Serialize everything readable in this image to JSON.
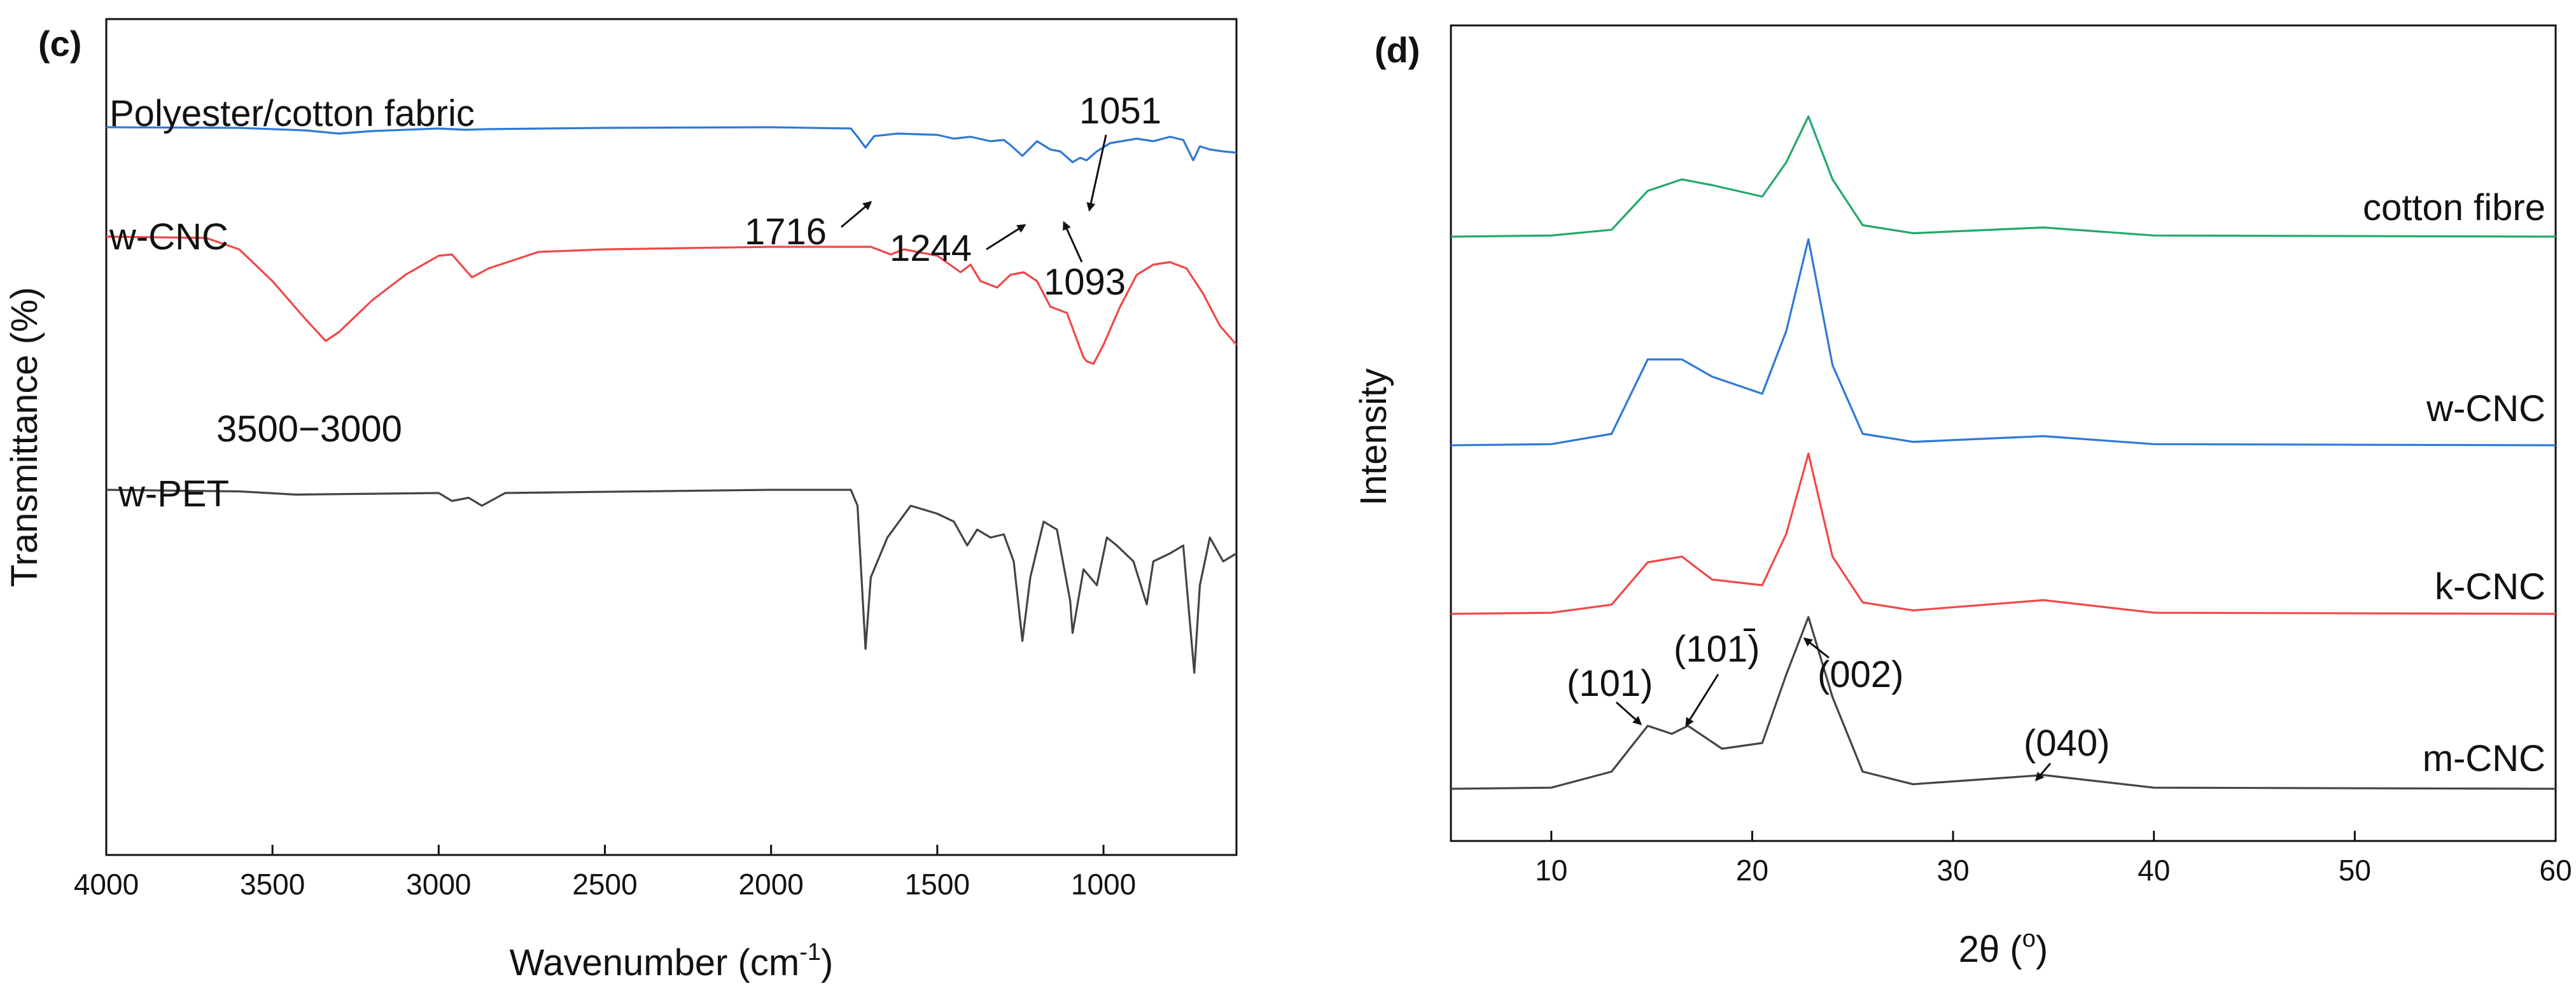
{
  "chart_data": [
    {
      "type": "line",
      "panel_label": "(c)",
      "xlabel": "Wavenumber (cm",
      "xlabel_sup": "-1",
      "xlabel_close": ")",
      "ylabel": "Transmittance (%)",
      "xlim": [
        4000,
        600
      ],
      "x_reversed": true,
      "xticks": [
        4000,
        3500,
        3000,
        2500,
        2000,
        1500,
        1000
      ],
      "series": [
        {
          "name": "Polyester/cotton fabric",
          "color": "#2f79d6",
          "points": [
            [
              4000,
              0.0
            ],
            [
              3600,
              0.01
            ],
            [
              3400,
              0.05
            ],
            [
              3300,
              0.1
            ],
            [
              3200,
              0.06
            ],
            [
              3000,
              0.02
            ],
            [
              2920,
              0.04
            ],
            [
              2850,
              0.03
            ],
            [
              2500,
              0.01
            ],
            [
              2000,
              0.0
            ],
            [
              1760,
              0.02
            ],
            [
              1740,
              0.15
            ],
            [
              1716,
              0.32
            ],
            [
              1690,
              0.14
            ],
            [
              1620,
              0.1
            ],
            [
              1500,
              0.12
            ],
            [
              1450,
              0.18
            ],
            [
              1400,
              0.15
            ],
            [
              1340,
              0.22
            ],
            [
              1300,
              0.2
            ],
            [
              1280,
              0.28
            ],
            [
              1244,
              0.45
            ],
            [
              1200,
              0.22
            ],
            [
              1160,
              0.35
            ],
            [
              1130,
              0.38
            ],
            [
              1093,
              0.55
            ],
            [
              1070,
              0.48
            ],
            [
              1051,
              0.52
            ],
            [
              1020,
              0.38
            ],
            [
              980,
              0.25
            ],
            [
              900,
              0.18
            ],
            [
              850,
              0.22
            ],
            [
              800,
              0.15
            ],
            [
              760,
              0.2
            ],
            [
              730,
              0.52
            ],
            [
              710,
              0.3
            ],
            [
              680,
              0.35
            ],
            [
              640,
              0.38
            ],
            [
              600,
              0.4
            ]
          ]
        },
        {
          "name": "w-CNC",
          "color": "#f04848",
          "points": [
            [
              4000,
              0.0
            ],
            [
              3700,
              0.01
            ],
            [
              3600,
              0.1
            ],
            [
              3500,
              0.35
            ],
            [
              3400,
              0.65
            ],
            [
              3340,
              0.82
            ],
            [
              3300,
              0.75
            ],
            [
              3200,
              0.5
            ],
            [
              3100,
              0.3
            ],
            [
              3000,
              0.15
            ],
            [
              2960,
              0.14
            ],
            [
              2900,
              0.32
            ],
            [
              2850,
              0.25
            ],
            [
              2700,
              0.12
            ],
            [
              2500,
              0.1
            ],
            [
              2000,
              0.08
            ],
            [
              1700,
              0.08
            ],
            [
              1640,
              0.14
            ],
            [
              1600,
              0.1
            ],
            [
              1500,
              0.15
            ],
            [
              1430,
              0.28
            ],
            [
              1400,
              0.22
            ],
            [
              1370,
              0.35
            ],
            [
              1320,
              0.4
            ],
            [
              1280,
              0.3
            ],
            [
              1240,
              0.28
            ],
            [
              1200,
              0.35
            ],
            [
              1160,
              0.55
            ],
            [
              1110,
              0.6
            ],
            [
              1060,
              0.95
            ],
            [
              1050,
              0.98
            ],
            [
              1030,
              1.0
            ],
            [
              1000,
              0.85
            ],
            [
              950,
              0.55
            ],
            [
              900,
              0.3
            ],
            [
              850,
              0.22
            ],
            [
              800,
              0.2
            ],
            [
              750,
              0.25
            ],
            [
              700,
              0.45
            ],
            [
              650,
              0.7
            ],
            [
              600,
              0.85
            ]
          ]
        },
        {
          "name": "w-PET",
          "color": "#444444",
          "points": [
            [
              4000,
              0.0
            ],
            [
              3600,
              0.01
            ],
            [
              3430,
              0.03
            ],
            [
              3000,
              0.02
            ],
            [
              2960,
              0.07
            ],
            [
              2910,
              0.05
            ],
            [
              2870,
              0.1
            ],
            [
              2800,
              0.02
            ],
            [
              2000,
              0.0
            ],
            [
              1760,
              0.0
            ],
            [
              1740,
              0.1
            ],
            [
              1716,
              1.0
            ],
            [
              1700,
              0.55
            ],
            [
              1650,
              0.3
            ],
            [
              1580,
              0.1
            ],
            [
              1500,
              0.15
            ],
            [
              1450,
              0.2
            ],
            [
              1410,
              0.35
            ],
            [
              1380,
              0.25
            ],
            [
              1340,
              0.3
            ],
            [
              1300,
              0.28
            ],
            [
              1270,
              0.45
            ],
            [
              1244,
              0.95
            ],
            [
              1220,
              0.55
            ],
            [
              1180,
              0.2
            ],
            [
              1140,
              0.25
            ],
            [
              1100,
              0.7
            ],
            [
              1093,
              0.9
            ],
            [
              1060,
              0.5
            ],
            [
              1020,
              0.6
            ],
            [
              990,
              0.3
            ],
            [
              960,
              0.35
            ],
            [
              910,
              0.45
            ],
            [
              870,
              0.72
            ],
            [
              850,
              0.45
            ],
            [
              800,
              0.4
            ],
            [
              760,
              0.35
            ],
            [
              727,
              1.15
            ],
            [
              710,
              0.6
            ],
            [
              680,
              0.3
            ],
            [
              640,
              0.45
            ],
            [
              600,
              0.4
            ]
          ]
        }
      ],
      "annotations": [
        "1051",
        "1716",
        "1244",
        "1093",
        "3500−3000"
      ]
    },
    {
      "type": "line",
      "panel_label": "(d)",
      "xlabel": "2θ (",
      "xlabel_sup": "o",
      "xlabel_close": ")",
      "ylabel": "Intensity",
      "xlim": [
        5,
        60
      ],
      "xticks": [
        10,
        20,
        30,
        40,
        50,
        60
      ],
      "series": [
        {
          "name": "cotton fibre",
          "color": "#22a86a",
          "points": [
            [
              5,
              0.0
            ],
            [
              10,
              0.01
            ],
            [
              13,
              0.06
            ],
            [
              14.8,
              0.4
            ],
            [
              16.5,
              0.5
            ],
            [
              18,
              0.45
            ],
            [
              20.5,
              0.35
            ],
            [
              21.7,
              0.65
            ],
            [
              22.8,
              1.05
            ],
            [
              24,
              0.5
            ],
            [
              25.5,
              0.1
            ],
            [
              28,
              0.03
            ],
            [
              34.5,
              0.08
            ],
            [
              40,
              0.01
            ],
            [
              60,
              0.0
            ]
          ]
        },
        {
          "name": "w-CNC",
          "color": "#2f79d6",
          "points": [
            [
              5,
              0.0
            ],
            [
              10,
              0.01
            ],
            [
              13,
              0.1
            ],
            [
              14.8,
              0.75
            ],
            [
              16.5,
              0.75
            ],
            [
              18,
              0.6
            ],
            [
              20.5,
              0.45
            ],
            [
              21.7,
              1.0
            ],
            [
              22.8,
              1.8
            ],
            [
              24,
              0.7
            ],
            [
              25.5,
              0.1
            ],
            [
              28,
              0.03
            ],
            [
              34.5,
              0.08
            ],
            [
              40,
              0.01
            ],
            [
              60,
              0.0
            ]
          ]
        },
        {
          "name": "k-CNC",
          "color": "#f04848",
          "points": [
            [
              5,
              0.0
            ],
            [
              10,
              0.01
            ],
            [
              13,
              0.08
            ],
            [
              14.8,
              0.45
            ],
            [
              16.5,
              0.5
            ],
            [
              18,
              0.3
            ],
            [
              20.5,
              0.25
            ],
            [
              21.7,
              0.7
            ],
            [
              22.8,
              1.4
            ],
            [
              24,
              0.5
            ],
            [
              25.5,
              0.1
            ],
            [
              28,
              0.03
            ],
            [
              34.5,
              0.12
            ],
            [
              40,
              0.01
            ],
            [
              60,
              0.0
            ]
          ]
        },
        {
          "name": "m-CNC",
          "color": "#444444",
          "points": [
            [
              5,
              0.0
            ],
            [
              10,
              0.01
            ],
            [
              13,
              0.15
            ],
            [
              14.8,
              0.55
            ],
            [
              16,
              0.48
            ],
            [
              16.8,
              0.55
            ],
            [
              18.5,
              0.35
            ],
            [
              20.5,
              0.4
            ],
            [
              21.7,
              1.0
            ],
            [
              22.8,
              1.5
            ],
            [
              24,
              0.8
            ],
            [
              25.5,
              0.15
            ],
            [
              28,
              0.04
            ],
            [
              34.5,
              0.12
            ],
            [
              40,
              0.01
            ],
            [
              60,
              0.0
            ]
          ]
        }
      ],
      "annotations": [
        "(101)",
        "(101)",
        "(002)",
        "(040)"
      ]
    }
  ]
}
